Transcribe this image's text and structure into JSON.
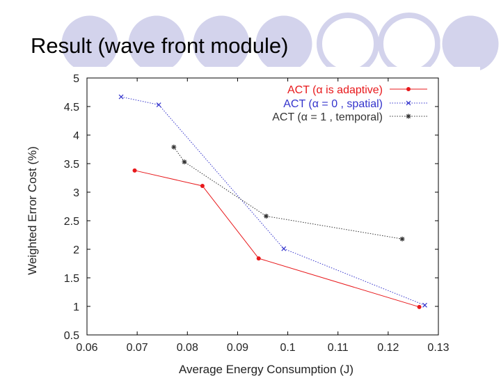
{
  "slide": {
    "title": "Result (wave front module)"
  },
  "chart_data": {
    "type": "line",
    "title": "",
    "xlabel": "Average Energy Consumption (J)",
    "ylabel": "Weighted Error Cost (%)",
    "xlim": [
      0.06,
      0.13
    ],
    "ylim": [
      0.5,
      5
    ],
    "x_ticks": [
      "0.06",
      "0.07",
      "0.08",
      "0.09",
      "0.1",
      "0.11",
      "0.12",
      "0.13"
    ],
    "y_ticks": [
      "0.5",
      "1",
      "1.5",
      "2",
      "2.5",
      "3",
      "3.5",
      "4",
      "4.5",
      "5"
    ],
    "legend_position": "top-right",
    "series": [
      {
        "name": "ACT (α is adaptive)",
        "color": "#e8181b",
        "marker": "dot",
        "line_style": "solid",
        "points": [
          [
            0.0695,
            3.38
          ],
          [
            0.083,
            3.11
          ],
          [
            0.0942,
            1.84
          ],
          [
            0.1262,
            0.99
          ]
        ]
      },
      {
        "name": "ACT (α = 0 , spatial)",
        "color": "#3333cc",
        "marker": "x",
        "line_style": "dotted",
        "points": [
          [
            0.0668,
            4.67
          ],
          [
            0.0743,
            4.53
          ],
          [
            0.0992,
            2.01
          ],
          [
            0.1273,
            1.02
          ]
        ]
      },
      {
        "name": "ACT (α = 1 , temporal)",
        "color": "#333333",
        "marker": "star",
        "line_style": "dotted",
        "points": [
          [
            0.0773,
            3.79
          ],
          [
            0.0794,
            3.53
          ],
          [
            0.0957,
            2.58
          ],
          [
            0.1228,
            2.18
          ]
        ]
      }
    ]
  }
}
